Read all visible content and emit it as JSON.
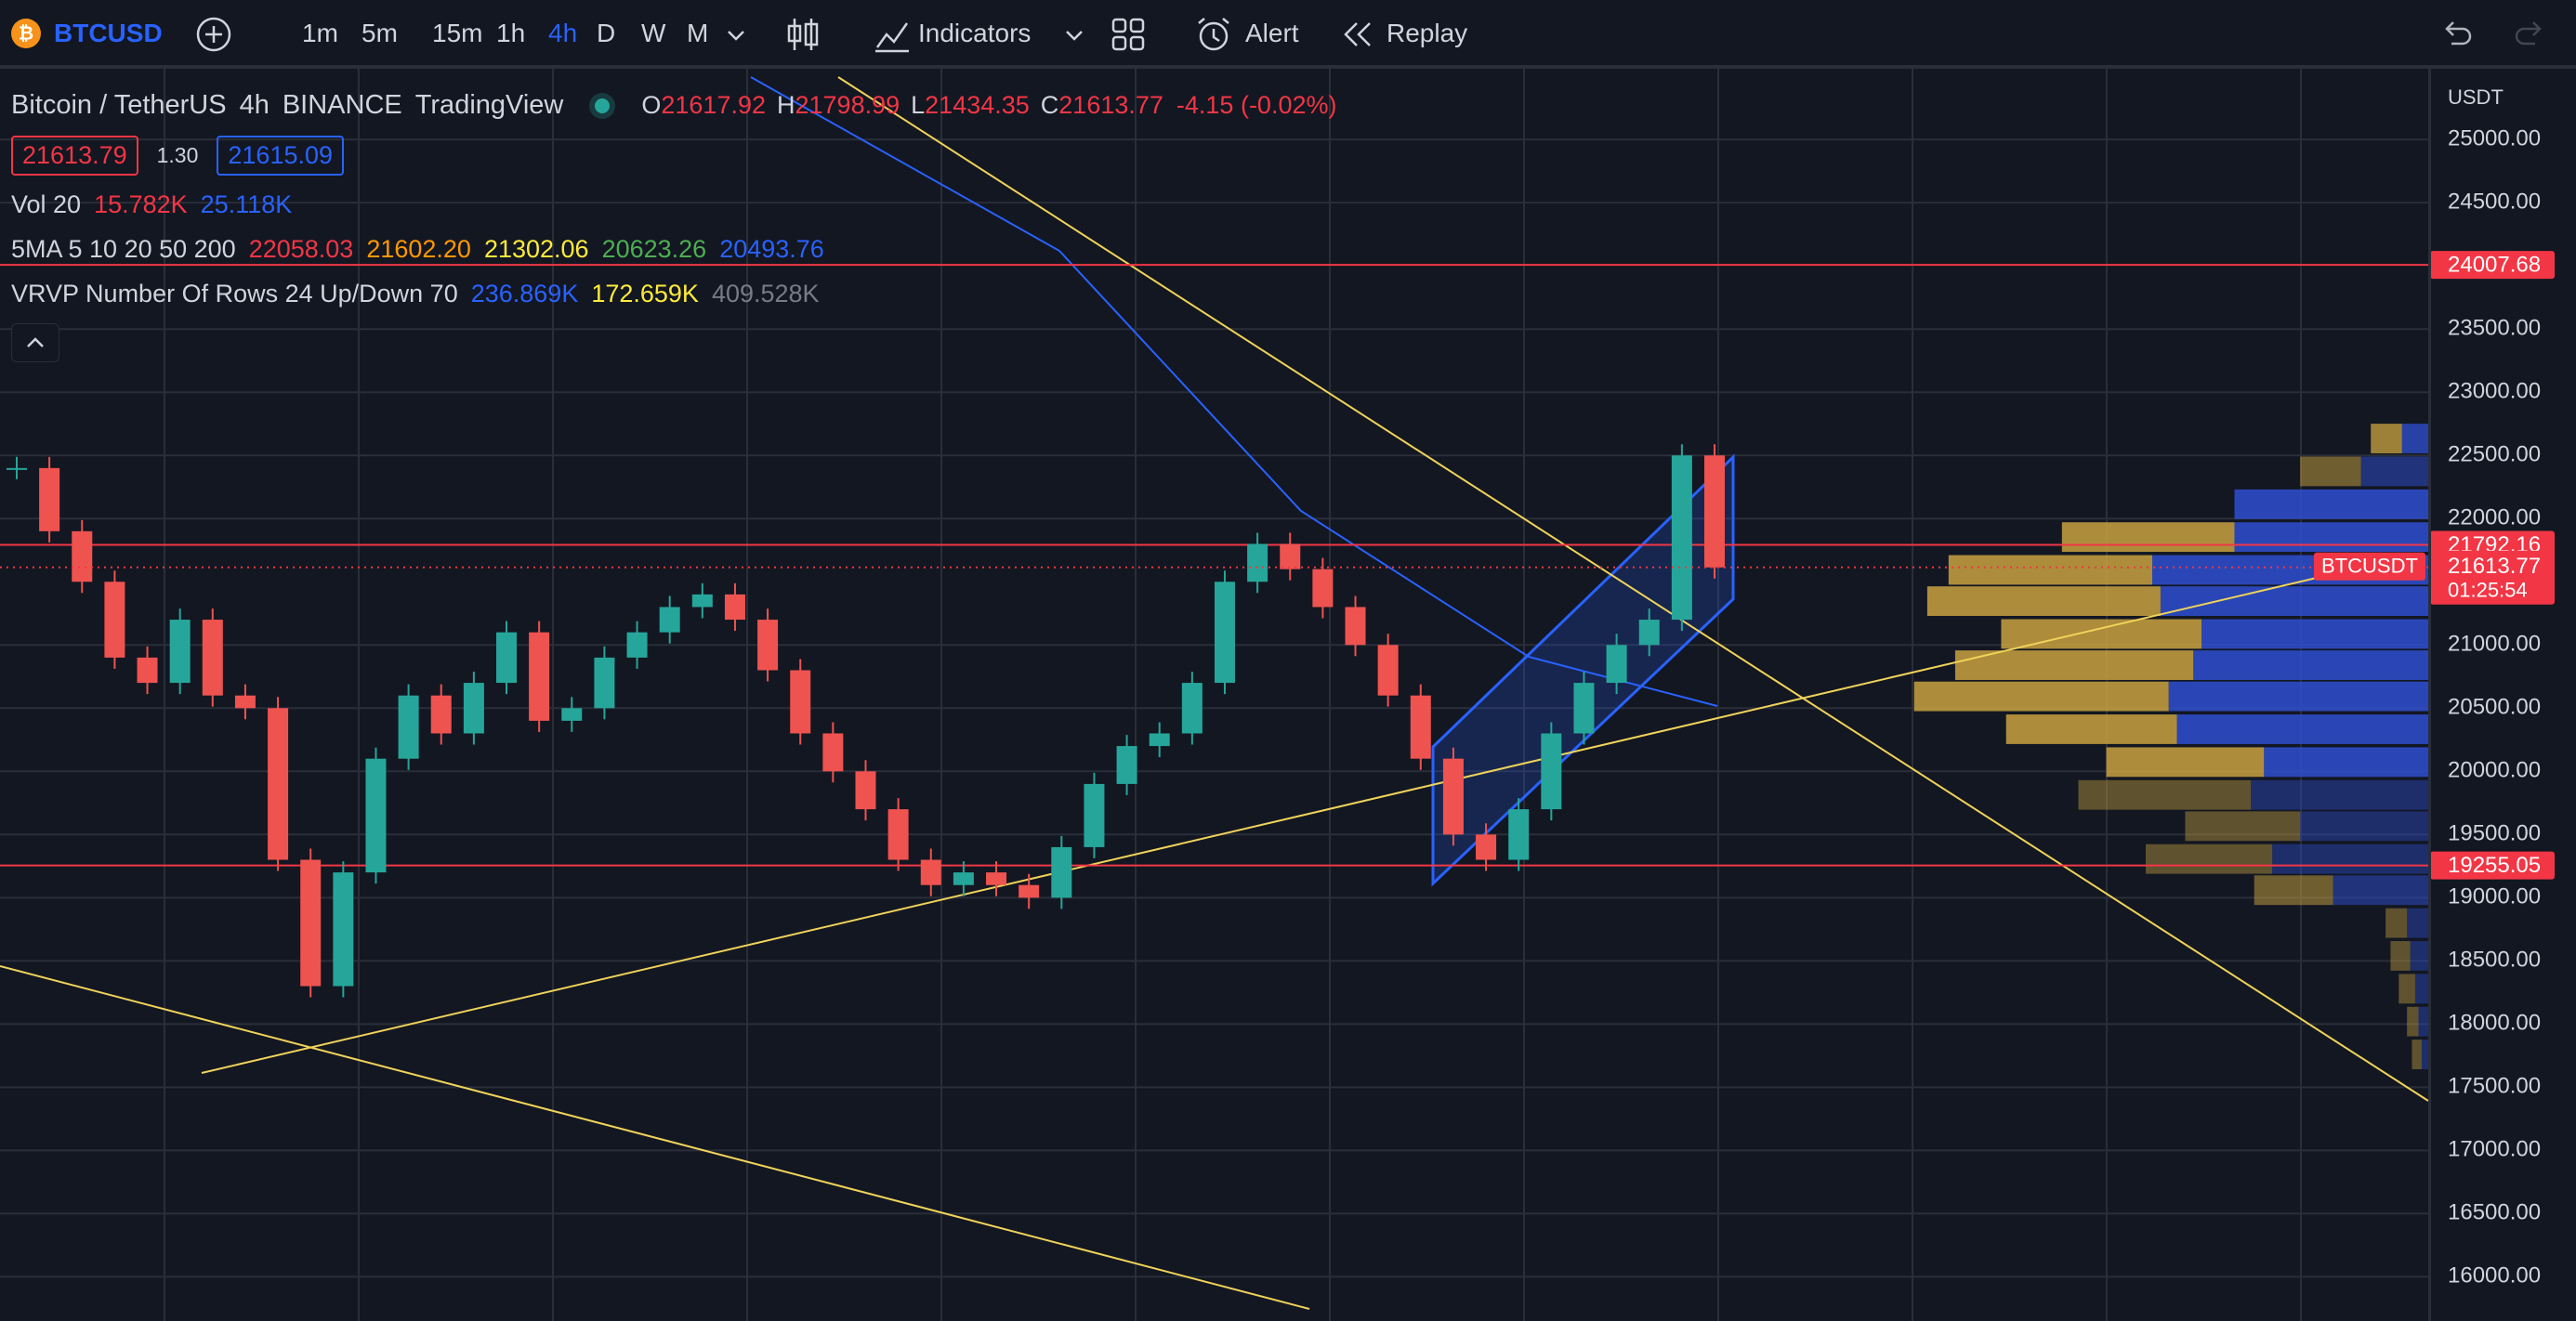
{
  "toolbar": {
    "symbol": "BTCUSD",
    "intervals": [
      "1m",
      "5m",
      "15m",
      "1h",
      "4h",
      "D",
      "W",
      "M"
    ],
    "active_interval": "4h",
    "indicators": "Indicators",
    "alert": "Alert",
    "replay": "Replay"
  },
  "legend": {
    "title": "Bitcoin / TetherUS",
    "interval": "4h",
    "exchange": "BINANCE",
    "source": "TradingView",
    "ohlc": [
      {
        "key": "O",
        "value": "21617.92"
      },
      {
        "key": "H",
        "value": "21798.99"
      },
      {
        "key": "L",
        "value": "21434.35"
      },
      {
        "key": "C",
        "value": "21613.77"
      }
    ],
    "change": "-4.15 (-0.02%)",
    "bid": "21613.79",
    "spread": "1.30",
    "ask": "21615.09"
  },
  "indicators": [
    {
      "name": "Vol 20",
      "values": [
        "15.782K",
        "25.118K"
      ],
      "colors": [
        "#f23645",
        "#2962ff"
      ]
    },
    {
      "name": "5MA 5 10 20 50 200",
      "values": [
        "22058.03",
        "21602.20",
        "21302.06",
        "20623.26",
        "20493.76"
      ],
      "colors": [
        "#f23645",
        "#ff9800",
        "#ffeb3b",
        "#4caf50",
        "#2962ff"
      ]
    },
    {
      "name": "VRVP Number Of Rows 24 Up/Down 70",
      "values": [
        "236.869K",
        "172.659K",
        "409.528K"
      ],
      "colors": [
        "#2962ff",
        "#ffeb3b",
        "#787b86"
      ]
    }
  ],
  "price_axis": {
    "currency": "USDT",
    "ylim": [
      15650,
      25560
    ],
    "yticks": [
      {
        "value": 25000,
        "label": "25000.00"
      },
      {
        "value": 24500,
        "label": "24500.00"
      },
      {
        "value": 23500,
        "label": "23500.00"
      },
      {
        "value": 23000,
        "label": "23000.00"
      },
      {
        "value": 22500,
        "label": "22500.00"
      },
      {
        "value": 22000,
        "label": "22000.00"
      },
      {
        "value": 21000,
        "label": "21000.00"
      },
      {
        "value": 20500,
        "label": "20500.00"
      },
      {
        "value": 20000,
        "label": "20000.00"
      },
      {
        "value": 19500,
        "label": "19500.00"
      },
      {
        "value": 19000,
        "label": "19000.00"
      },
      {
        "value": 18500,
        "label": "18500.00"
      },
      {
        "value": 18000,
        "label": "18000.00"
      },
      {
        "value": 17500,
        "label": "17500.00"
      },
      {
        "value": 17000,
        "label": "17000.00"
      },
      {
        "value": 16500,
        "label": "16500.00"
      },
      {
        "value": 16000,
        "label": "16000.00"
      }
    ],
    "markers": [
      {
        "value": 24007.68,
        "label": "24007.68"
      },
      {
        "value": 21792.16,
        "label": "21792.16"
      },
      {
        "value": 19255.05,
        "label": "19255.05"
      }
    ],
    "last": {
      "value": 21613.77,
      "label": "21613.77",
      "tag": "BTCUSDT",
      "countdown": "01:25:54"
    }
  },
  "candles": {
    "up_color": "#26a69a",
    "down_color": "#ef5350",
    "closes": [
      22400,
      21900,
      21500,
      20900,
      20700,
      21200,
      20600,
      20500,
      19300,
      18300,
      19200,
      20100,
      20600,
      20300,
      20700,
      21100,
      20400,
      20500,
      20900,
      21100,
      21300,
      21400,
      21200,
      20800,
      20300,
      20000,
      19700,
      19300,
      19100,
      19200,
      19100,
      19000,
      19400,
      19900,
      20200,
      20300,
      20700,
      21500,
      21800,
      21600,
      21300,
      21000,
      20600,
      20100,
      19500,
      19300,
      19700,
      20300,
      20700,
      21000,
      21200,
      22500,
      21613.77
    ]
  }
}
